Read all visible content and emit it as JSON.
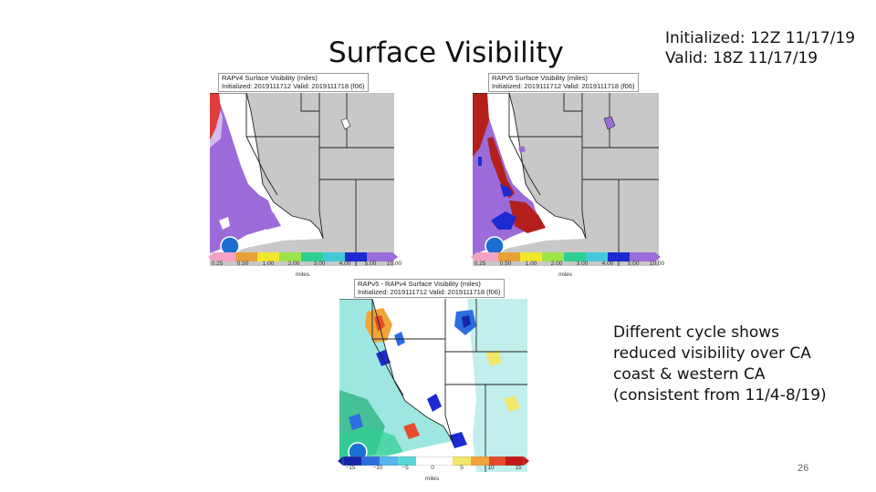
{
  "slide": {
    "title": "Surface Visibility",
    "init_line": "Initialized: 12Z 11/17/19",
    "valid_line": "Valid: 18Z 11/17/19",
    "note": "Different cycle shows reduced visibility over CA coast & western CA (consistent from 11/4-8/19)",
    "page_number": "26"
  },
  "panels": {
    "left": {
      "header1": "RAPv4 Surface Visibility (miles)",
      "header2": "Initialized: 2019111712 Valid: 2019111718 (f06)",
      "ticks": [
        "0.25",
        "0.50",
        "1.00",
        "2.00",
        "3.00",
        "4.00",
        "5.00",
        "10.00"
      ],
      "units": "miles"
    },
    "right": {
      "header1": "RAPv5 Surface Visibility (miles)",
      "header2": "Initialized: 2019111712 Valid: 2019111718 (f06)",
      "ticks": [
        "0.25",
        "0.50",
        "1.00",
        "2.00",
        "3.00",
        "4.00",
        "5.00",
        "10.00"
      ],
      "units": "miles"
    },
    "diff": {
      "header1": "RAPv5 - RAPv4 Surface Visibility (miles)",
      "header2": "Initialized: 2019111712 Valid: 2019111718 (f06)",
      "ticks": [
        "−15",
        "−10",
        "−5",
        "0",
        "5",
        "10",
        "15"
      ],
      "units": "miles"
    }
  },
  "colors": {
    "visibility_scale": [
      "#f4a3c6",
      "#e23b3b",
      "#e8a13a",
      "#f0e62a",
      "#9fe34a",
      "#2fcf93",
      "#45c9d8",
      "#1c2bd1",
      "#9b6cd9"
    ],
    "diff_scale": [
      "#1526a8",
      "#2c6ddf",
      "#57b4ec",
      "#58d6d6",
      "#ffffff",
      "#ffffff",
      "#f2e66b",
      "#f0a53a",
      "#e54b2a",
      "#c41616"
    ],
    "land": "#c8c8c8",
    "border": "#222222"
  }
}
